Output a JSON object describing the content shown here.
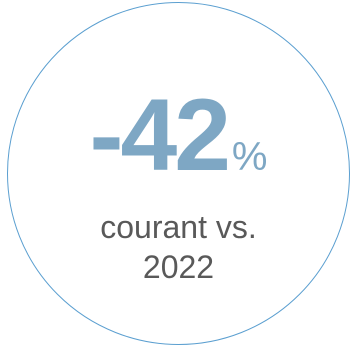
{
  "stat": {
    "value": "-42",
    "unit": "%"
  },
  "caption": {
    "line1": "courant vs.",
    "line2": "2022"
  },
  "colors": {
    "accent": "#7ea7c4",
    "ring": "#5b9fd0",
    "caption_text": "#595959"
  }
}
